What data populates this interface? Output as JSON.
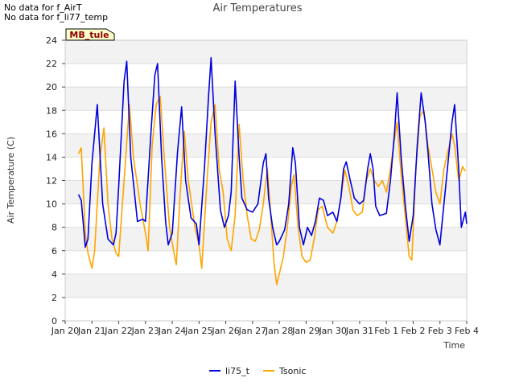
{
  "notes": [
    "No data for f_AirT",
    "No data for f_li77_temp"
  ],
  "chart_data": {
    "type": "line",
    "title": "Air Temperatures",
    "xlabel": "Time",
    "ylabel": "Air Temperature (C)",
    "ylim": [
      0,
      24
    ],
    "yticks": [
      0,
      2,
      4,
      6,
      8,
      10,
      12,
      14,
      16,
      18,
      20,
      22,
      24
    ],
    "xlim": [
      0,
      15
    ],
    "xticks": [
      0,
      1,
      2,
      3,
      4,
      5,
      6,
      7,
      8,
      9,
      10,
      11,
      12,
      13,
      14,
      15
    ],
    "xtick_labels": [
      "Jan 20",
      "Jan 21",
      "Jan 22",
      "Jan 23",
      "Jan 24",
      "Jan 25",
      "Jan 26",
      "Jan 27",
      "Jan 28",
      "Jan 29",
      "Jan 30",
      "Jan 31",
      "Feb 1",
      "Feb 2",
      "Feb 3",
      "Feb 4"
    ],
    "grid": true,
    "legend_placement": "bottom",
    "station_label": "MB_tule",
    "series": [
      {
        "name": "li75_t",
        "color": "#0000dd",
        "points": [
          [
            0.5,
            10.8
          ],
          [
            0.6,
            10.3
          ],
          [
            0.75,
            6.3
          ],
          [
            0.85,
            7.0
          ],
          [
            1.0,
            13.5
          ],
          [
            1.2,
            18.5
          ],
          [
            1.4,
            10.0
          ],
          [
            1.6,
            7.0
          ],
          [
            1.8,
            6.5
          ],
          [
            1.9,
            7.5
          ],
          [
            2.0,
            11.5
          ],
          [
            2.2,
            20.5
          ],
          [
            2.3,
            22.2
          ],
          [
            2.45,
            14.0
          ],
          [
            2.7,
            8.5
          ],
          [
            2.9,
            8.7
          ],
          [
            3.0,
            8.5
          ],
          [
            3.2,
            16.0
          ],
          [
            3.35,
            21.0
          ],
          [
            3.45,
            22.0
          ],
          [
            3.6,
            14.0
          ],
          [
            3.75,
            8.5
          ],
          [
            3.85,
            6.5
          ],
          [
            4.0,
            7.5
          ],
          [
            4.2,
            14.5
          ],
          [
            4.35,
            18.3
          ],
          [
            4.5,
            12.0
          ],
          [
            4.7,
            8.8
          ],
          [
            4.9,
            8.3
          ],
          [
            5.0,
            6.5
          ],
          [
            5.2,
            13.0
          ],
          [
            5.35,
            19.0
          ],
          [
            5.45,
            22.5
          ],
          [
            5.6,
            16.0
          ],
          [
            5.8,
            9.5
          ],
          [
            5.95,
            8.0
          ],
          [
            6.1,
            9.0
          ],
          [
            6.2,
            11.0
          ],
          [
            6.35,
            20.5
          ],
          [
            6.5,
            14.0
          ],
          [
            6.6,
            10.5
          ],
          [
            6.8,
            9.5
          ],
          [
            7.0,
            9.3
          ],
          [
            7.2,
            10.0
          ],
          [
            7.4,
            13.5
          ],
          [
            7.5,
            14.3
          ],
          [
            7.6,
            10.5
          ],
          [
            7.75,
            8.0
          ],
          [
            7.9,
            6.5
          ],
          [
            8.0,
            6.8
          ],
          [
            8.2,
            7.8
          ],
          [
            8.35,
            10.0
          ],
          [
            8.5,
            14.8
          ],
          [
            8.6,
            13.5
          ],
          [
            8.75,
            8.0
          ],
          [
            8.9,
            6.5
          ],
          [
            9.05,
            8.0
          ],
          [
            9.2,
            7.3
          ],
          [
            9.35,
            8.5
          ],
          [
            9.5,
            10.5
          ],
          [
            9.65,
            10.3
          ],
          [
            9.8,
            9.0
          ],
          [
            10.0,
            9.3
          ],
          [
            10.15,
            8.5
          ],
          [
            10.3,
            10.5
          ],
          [
            10.4,
            13.0
          ],
          [
            10.5,
            13.6
          ],
          [
            10.65,
            12.0
          ],
          [
            10.8,
            10.5
          ],
          [
            11.0,
            10.0
          ],
          [
            11.15,
            10.3
          ],
          [
            11.3,
            13.0
          ],
          [
            11.4,
            14.3
          ],
          [
            11.5,
            13.0
          ],
          [
            11.6,
            9.8
          ],
          [
            11.75,
            9.0
          ],
          [
            12.0,
            9.2
          ],
          [
            12.15,
            12.0
          ],
          [
            12.3,
            16.0
          ],
          [
            12.4,
            19.5
          ],
          [
            12.55,
            14.0
          ],
          [
            12.7,
            10.0
          ],
          [
            12.85,
            6.8
          ],
          [
            13.0,
            9.0
          ],
          [
            13.15,
            15.0
          ],
          [
            13.3,
            19.5
          ],
          [
            13.45,
            17.0
          ],
          [
            13.55,
            14.5
          ],
          [
            13.7,
            10.0
          ],
          [
            13.85,
            7.8
          ],
          [
            14.0,
            6.5
          ],
          [
            14.15,
            10.0
          ],
          [
            14.3,
            13.5
          ],
          [
            14.45,
            17.0
          ],
          [
            14.55,
            18.5
          ],
          [
            14.7,
            13.0
          ],
          [
            14.8,
            8.0
          ],
          [
            14.95,
            9.3
          ],
          [
            15.0,
            8.3
          ]
        ]
      },
      {
        "name": "Tsonic",
        "color": "#ffa500",
        "points": [
          [
            0.5,
            14.3
          ],
          [
            0.6,
            14.8
          ],
          [
            0.75,
            7.5
          ],
          [
            0.85,
            5.8
          ],
          [
            1.0,
            4.5
          ],
          [
            1.1,
            6.0
          ],
          [
            1.3,
            14.0
          ],
          [
            1.45,
            16.5
          ],
          [
            1.6,
            10.0
          ],
          [
            1.75,
            7.0
          ],
          [
            1.9,
            5.8
          ],
          [
            2.0,
            5.5
          ],
          [
            2.2,
            12.0
          ],
          [
            2.4,
            18.5
          ],
          [
            2.55,
            14.0
          ],
          [
            2.8,
            10.0
          ],
          [
            3.0,
            7.5
          ],
          [
            3.1,
            6.0
          ],
          [
            3.25,
            15.0
          ],
          [
            3.4,
            18.5
          ],
          [
            3.55,
            19.2
          ],
          [
            3.7,
            14.0
          ],
          [
            3.9,
            8.0
          ],
          [
            4.05,
            6.0
          ],
          [
            4.15,
            4.8
          ],
          [
            4.3,
            11.0
          ],
          [
            4.45,
            16.2
          ],
          [
            4.6,
            12.0
          ],
          [
            4.85,
            8.0
          ],
          [
            5.0,
            6.5
          ],
          [
            5.1,
            4.5
          ],
          [
            5.3,
            12.0
          ],
          [
            5.45,
            17.0
          ],
          [
            5.6,
            18.5
          ],
          [
            5.75,
            13.0
          ],
          [
            5.9,
            11.0
          ],
          [
            6.05,
            7.0
          ],
          [
            6.2,
            6.0
          ],
          [
            6.35,
            9.0
          ],
          [
            6.5,
            16.8
          ],
          [
            6.65,
            12.0
          ],
          [
            6.8,
            9.0
          ],
          [
            6.95,
            7.0
          ],
          [
            7.1,
            6.8
          ],
          [
            7.25,
            7.8
          ],
          [
            7.4,
            10.0
          ],
          [
            7.55,
            13.0
          ],
          [
            7.65,
            10.0
          ],
          [
            7.8,
            5.0
          ],
          [
            7.9,
            3.1
          ],
          [
            8.05,
            4.5
          ],
          [
            8.15,
            5.5
          ],
          [
            8.3,
            8.0
          ],
          [
            8.45,
            11.5
          ],
          [
            8.55,
            12.5
          ],
          [
            8.7,
            8.0
          ],
          [
            8.85,
            5.5
          ],
          [
            9.0,
            5.0
          ],
          [
            9.15,
            5.2
          ],
          [
            9.3,
            7.0
          ],
          [
            9.45,
            9.5
          ],
          [
            9.6,
            9.8
          ],
          [
            9.8,
            8.0
          ],
          [
            10.0,
            7.5
          ],
          [
            10.15,
            8.5
          ],
          [
            10.3,
            10.5
          ],
          [
            10.45,
            12.9
          ],
          [
            10.6,
            11.5
          ],
          [
            10.75,
            9.5
          ],
          [
            10.9,
            9.0
          ],
          [
            11.1,
            9.3
          ],
          [
            11.25,
            12.0
          ],
          [
            11.4,
            13.0
          ],
          [
            11.55,
            12.0
          ],
          [
            11.7,
            11.5
          ],
          [
            11.85,
            12.0
          ],
          [
            12.0,
            11.0
          ],
          [
            12.15,
            13.0
          ],
          [
            12.3,
            15.5
          ],
          [
            12.4,
            17.0
          ],
          [
            12.55,
            12.5
          ],
          [
            12.7,
            9.0
          ],
          [
            12.85,
            5.5
          ],
          [
            12.95,
            5.2
          ],
          [
            13.1,
            13.0
          ],
          [
            13.25,
            17.5
          ],
          [
            13.4,
            18.0
          ],
          [
            13.55,
            15.0
          ],
          [
            13.7,
            13.0
          ],
          [
            13.85,
            11.0
          ],
          [
            14.0,
            10.0
          ],
          [
            14.15,
            13.0
          ],
          [
            14.3,
            14.5
          ],
          [
            14.45,
            16.0
          ],
          [
            14.55,
            15.0
          ],
          [
            14.7,
            12.0
          ],
          [
            14.85,
            13.2
          ],
          [
            14.95,
            12.8
          ]
        ]
      }
    ]
  }
}
